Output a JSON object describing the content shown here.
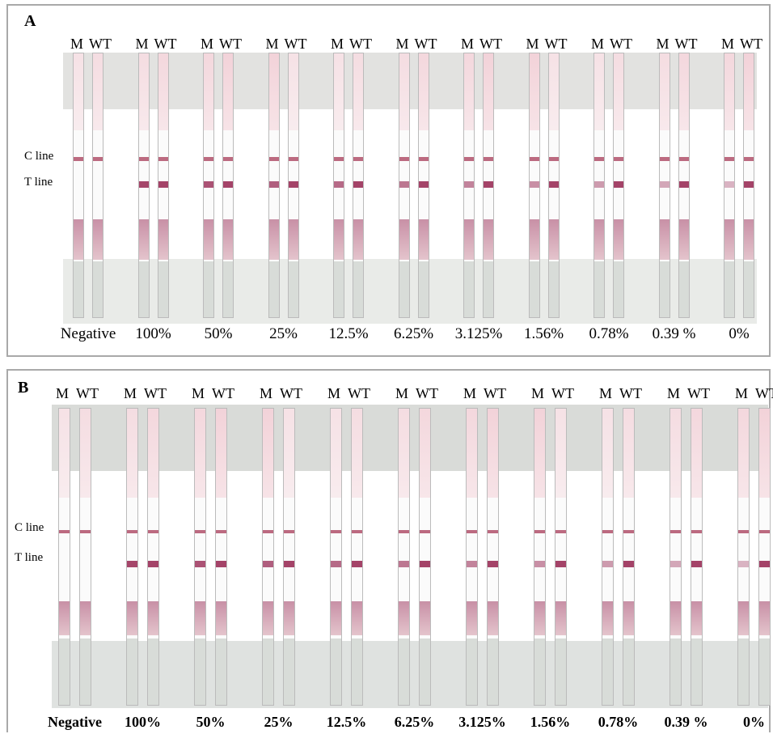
{
  "panels": [
    {
      "id": "A",
      "letter": "A",
      "c_line_label": "C line",
      "t_line_label": "T line",
      "strip_labels": [
        "M",
        "WT"
      ],
      "concentration_labels": [
        "Negative",
        "100%",
        "50%",
        "25%",
        "12.5%",
        "6.25%",
        "3.125%",
        "1.56%",
        "0.78%",
        "0.39 %",
        "0%"
      ]
    },
    {
      "id": "B",
      "letter": "B",
      "c_line_label": "C line",
      "t_line_label": "T line",
      "strip_labels": [
        "M",
        "WT"
      ],
      "concentration_labels": [
        "Negative",
        "100%",
        "50%",
        "25%",
        "12.5%",
        "6.25%",
        "3.125%",
        "1.56%",
        "0.78%",
        "0.39 %",
        "0%"
      ]
    }
  ],
  "colors": {
    "c_band": "#b0506a",
    "t_band": "#9a2f58",
    "sample_pad": "#c890a6",
    "top_tint": "#f0c8d0",
    "background_pad": "#d8dcd8"
  }
}
